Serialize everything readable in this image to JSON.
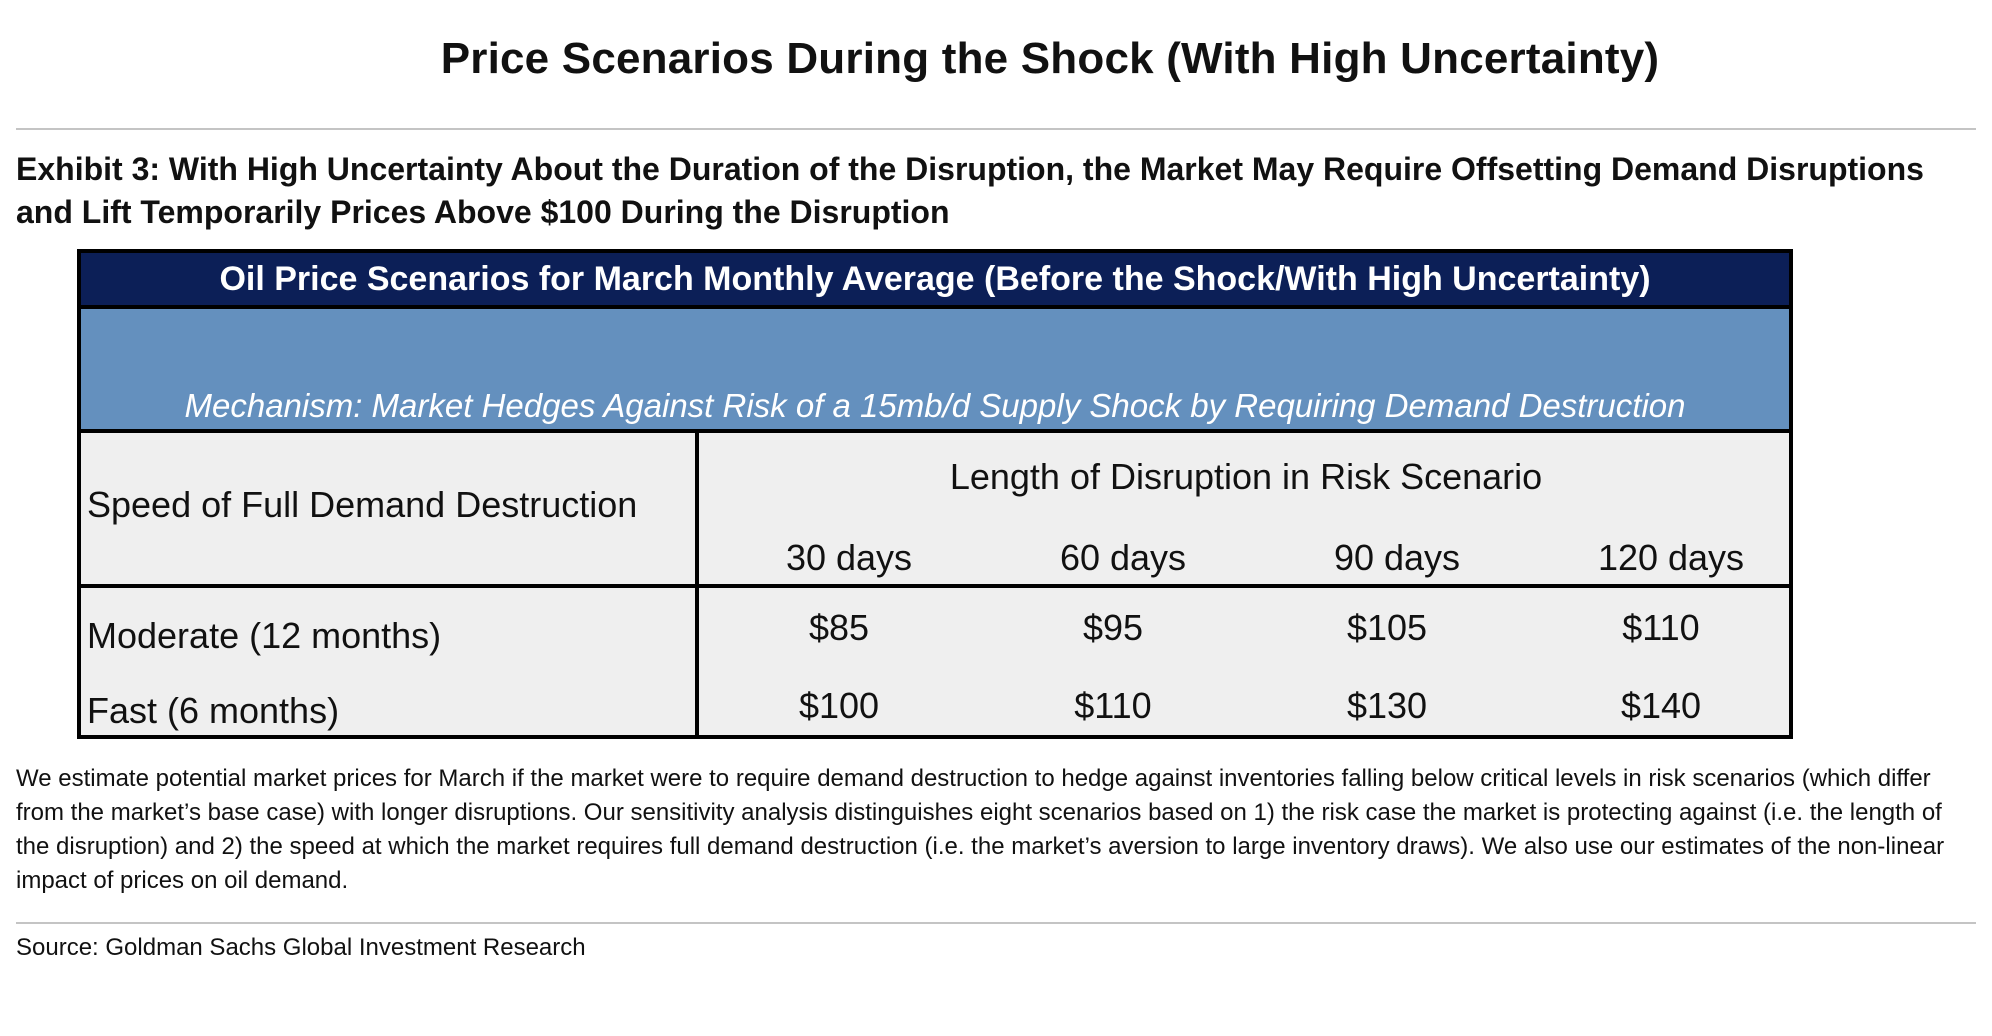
{
  "page": {
    "title": "Price Scenarios During the Shock (With High Uncertainty)"
  },
  "exhibit": {
    "title": "Exhibit 3: With High Uncertainty About the Duration of the Disruption, the Market May Require Offsetting Demand Disruptions and Lift Temporarily Prices Above $100 During the Disruption"
  },
  "table": {
    "header": "Oil Price Scenarios for March Monthly Average (Before the Shock/With High Uncertainty)",
    "mechanism": "Mechanism: Market Hedges Against Risk of a 15mb/d Supply Shock by Requiring Demand Destruction",
    "row_header_label": "Speed of Full Demand Destruction",
    "column_group_label": "Length of Disruption in Risk Scenario",
    "columns": [
      "30 days",
      "60 days",
      "90 days",
      "120 days"
    ],
    "rows": [
      {
        "label": "Moderate (12 months)",
        "values": [
          "$85",
          "$95",
          "$105",
          "$110"
        ]
      },
      {
        "label": "Fast (6 months)",
        "values": [
          "$100",
          "$110",
          "$130",
          "$140"
        ]
      }
    ],
    "colors": {
      "header_bg": "#0c1f57",
      "mechanism_bg": "#6490be",
      "body_bg": "#efefef"
    }
  },
  "footnote": "We estimate potential market prices for March if the market were to require demand destruction to hedge against inventories falling below critical levels in risk scenarios (which differ from the market’s base case) with longer disruptions. Our sensitivity analysis distinguishes eight scenarios based on 1) the risk case the market is protecting against (i.e. the length of the disruption) and 2) the speed at which the market requires full demand destruction (i.e. the market’s aversion to large inventory draws). We also use our estimates of the non-linear impact of prices on oil demand.",
  "source": "Source: Goldman Sachs Global Investment Research"
}
